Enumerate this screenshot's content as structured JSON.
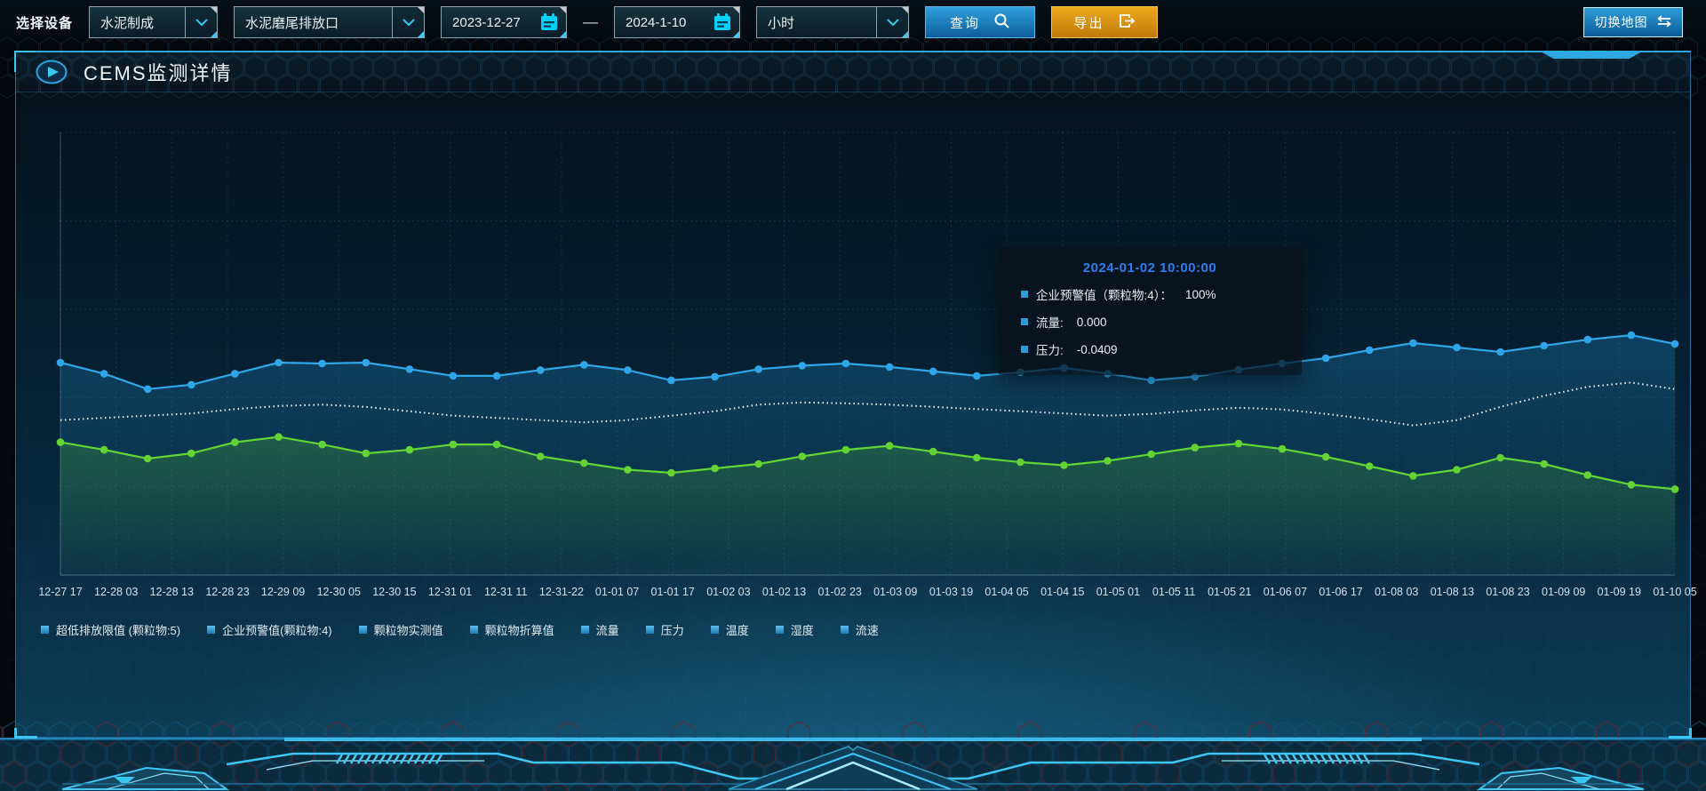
{
  "toolbar": {
    "device_label": "选择设备",
    "device_type_value": "水泥制成",
    "outlet_value": "水泥磨尾排放口",
    "date_start": "2023-12-27",
    "date_separator": "—",
    "date_end": "2024-1-10",
    "interval_value": "小时",
    "query_label": "查询",
    "export_label": "导出",
    "switch_map_label": "切换地图"
  },
  "panel": {
    "title": "CEMS监测详情"
  },
  "tooltip": {
    "title": "2024-01-02 10:00:00",
    "rows": [
      {
        "label": "企业预警值（颗粒物:4）：",
        "value": "100%"
      },
      {
        "label": "流量:",
        "value": "0.000"
      },
      {
        "label": "压力:",
        "value": "-0.0409"
      }
    ]
  },
  "legend": {
    "items": [
      "超低排放限值 (颗粒物:5)",
      "企业预警值(颗粒物:4)",
      "颗粒物实测值",
      "颗粒物折算值",
      "流量",
      "压力",
      "温度",
      "湿度",
      "流速"
    ]
  },
  "chart_data": {
    "type": "line",
    "title": "",
    "xlabel": "",
    "ylabel": "",
    "grid": "dotted",
    "y_axis_labels_visible": false,
    "legend_position": "bottom",
    "x_labels": [
      "12-27 17",
      "12-28 03",
      "12-28 13",
      "12-28 23",
      "12-29 09",
      "12-30 05",
      "12-30 15",
      "12-31 01",
      "12-31 11",
      "12-31-22",
      "01-01 07",
      "01-01 17",
      "01-02 03",
      "01-02 13",
      "01-02 23",
      "01-03 09",
      "01-03 19",
      "01-04 05",
      "01-04 15",
      "01-05 01",
      "01-05 11",
      "01-05 21",
      "01-06 07",
      "01-06 17",
      "01-08 03",
      "01-08 13",
      "01-08 23",
      "01-09 09",
      "01-09 19",
      "01-10 05"
    ],
    "value_scale": "percent-of-plot-height-from-top",
    "series": [
      {
        "name": "blue-solid-line",
        "color": "#2ea6e8",
        "style": "solid",
        "markers": true,
        "area": true,
        "values": [
          52,
          54.5,
          58,
          57,
          54.5,
          52,
          52.2,
          52,
          53.5,
          55,
          55,
          53.7,
          52.5,
          53.7,
          56,
          55.2,
          53.5,
          52.7,
          52.2,
          53,
          54,
          55,
          54.2,
          53.2,
          54.5,
          56,
          55.2,
          53.6,
          52.2,
          51,
          49.2,
          47.6,
          48.6,
          49.6,
          48.2,
          46.8,
          45.8,
          47.8
        ]
      },
      {
        "name": "white-dotted-line",
        "color": "#eef4f7",
        "style": "dotted",
        "markers": false,
        "area": false,
        "values": [
          65,
          64.5,
          64,
          63.5,
          62.5,
          61.8,
          61.5,
          62,
          63,
          64,
          64.5,
          65,
          65.5,
          65,
          64,
          63,
          61.5,
          61,
          61.2,
          61.5,
          62,
          62.5,
          63,
          63.5,
          64,
          63.6,
          62.8,
          62.2,
          62.6,
          63.6,
          64.8,
          66.2,
          65,
          62,
          59.5,
          57.5,
          56.5,
          58
        ]
      },
      {
        "name": "green-solid-line",
        "color": "#63d434",
        "style": "solid",
        "markers": true,
        "area": true,
        "values": [
          70,
          71.7,
          73.7,
          72.5,
          70,
          68.8,
          70.5,
          72.5,
          71.7,
          70.5,
          70.5,
          73.2,
          74.7,
          76.2,
          76.9,
          75.9,
          74.9,
          73.2,
          71.7,
          70.8,
          72.1,
          73.5,
          74.5,
          75.2,
          74.2,
          72.7,
          71.2,
          70.3,
          71.5,
          73.3,
          75.4,
          77.6,
          76.2,
          73.5,
          74.9,
          77.4,
          79.6,
          80.6
        ]
      }
    ]
  },
  "colors": {
    "accent_cyan": "#35c8f0",
    "query_button_blue": "#1f8ccc",
    "export_button_orange": "#e29a12",
    "tooltip_title_blue": "#2d7ff0",
    "line_blue": "#2ea6e8",
    "line_white": "#eef4f7",
    "line_green": "#63d434",
    "legend_marker_blue": "#2d9cdb"
  }
}
